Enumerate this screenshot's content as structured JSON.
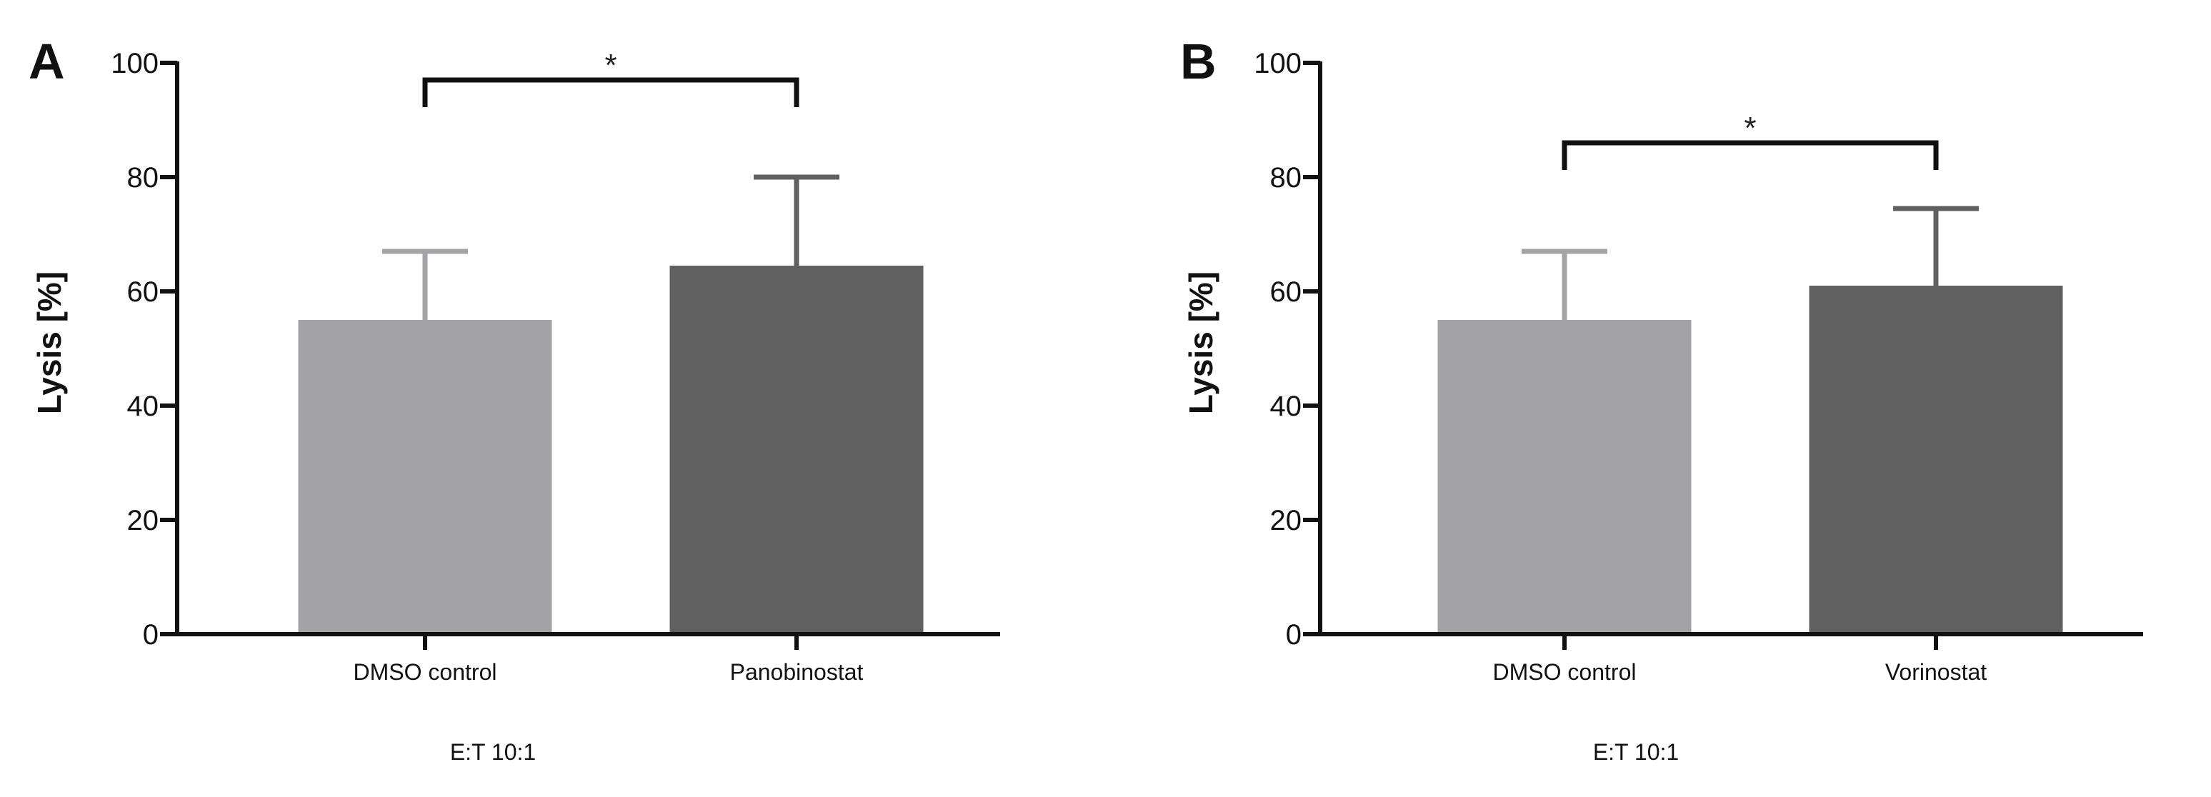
{
  "chart_data": [
    {
      "type": "bar",
      "panel_label": "A",
      "categories": [
        "DMSO control",
        "Panobinostat"
      ],
      "values": [
        55,
        64.5
      ],
      "errors": [
        12,
        15.5
      ],
      "ylabel": "Lysis [%]",
      "xlabel": "E:T 10:1",
      "ylim": [
        0,
        100
      ],
      "yticks": [
        0,
        20,
        40,
        60,
        80,
        100
      ],
      "bar_colors": [
        "#a3a3a7",
        "#606060"
      ],
      "significance": {
        "from": 0,
        "to": 1,
        "label": "*",
        "y": 97
      }
    },
    {
      "type": "bar",
      "panel_label": "B",
      "categories": [
        "DMSO control",
        "Vorinostat"
      ],
      "values": [
        55,
        61
      ],
      "errors": [
        12,
        13.5
      ],
      "ylabel": "Lysis [%]",
      "xlabel": "E:T 10:1",
      "ylim": [
        0,
        100
      ],
      "yticks": [
        0,
        20,
        40,
        60,
        80,
        100
      ],
      "bar_colors": [
        "#a3a3a7",
        "#606060"
      ],
      "significance": {
        "from": 0,
        "to": 1,
        "label": "*",
        "y": 86
      }
    }
  ]
}
